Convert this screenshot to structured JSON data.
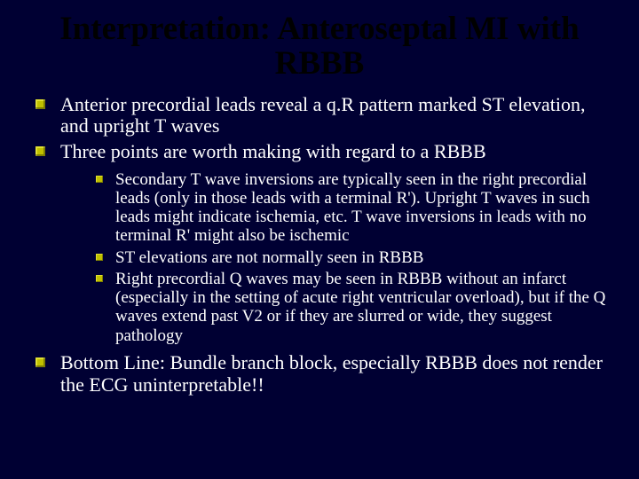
{
  "background_color": "#000033",
  "title_color": "#000000",
  "body_text_color": "#ffffff",
  "bullet_color": "#c0c000",
  "font_family": "Times New Roman",
  "title_fontsize": 37,
  "lvl1_fontsize": 22,
  "lvl2_fontsize": 19,
  "title": "Interpretation: Anteroseptal MI with RBBB",
  "bullets": {
    "b1": "Anterior precordial leads reveal a q.R pattern marked ST elevation, and upright T waves",
    "b2": "Three points are worth making with regard to a RBBB",
    "b2_sub": {
      "s1": "Secondary T wave inversions are typically seen in the right precordial leads (only in those leads with a terminal R'). Upright T waves in such leads might indicate ischemia, etc. T wave inversions in leads with no terminal R' might also be ischemic",
      "s2": "ST elevations are not normally seen in RBBB",
      "s3": "Right precordial Q waves may be seen in RBBB without an infarct (especially in the setting of acute right ventricular overload), but if the Q waves extend past V2 or if they are slurred or wide, they suggest pathology"
    },
    "b3": "Bottom Line: Bundle branch block, especially RBBB does not render the ECG uninterpretable!!"
  }
}
